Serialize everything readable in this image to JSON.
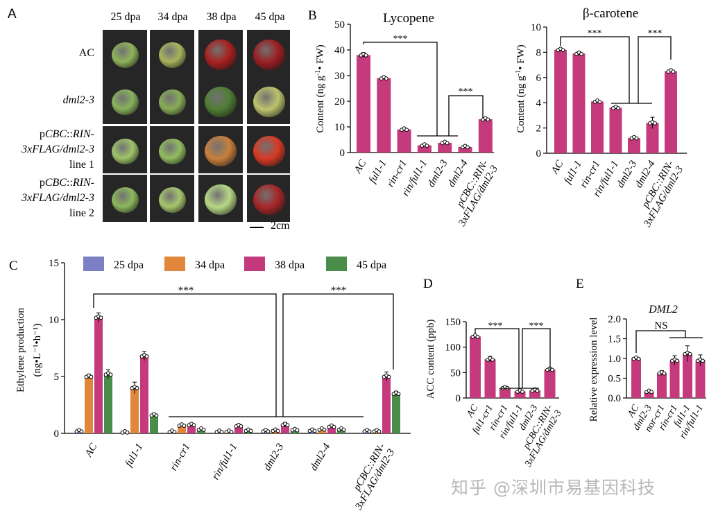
{
  "panelA": {
    "letter": "A",
    "columns": [
      "25 dpa",
      "34 dpa",
      "38 dpa",
      "45 dpa"
    ],
    "rows": [
      {
        "label_lines": [
          "AC"
        ],
        "colors": [
          "#8fb35a",
          "#a8b45c",
          "#a8201e",
          "#9b1e22"
        ]
      },
      {
        "label_lines": [
          "dml2-3"
        ],
        "colors": [
          "#8ab25c",
          "#87ad57",
          "#4f7e34",
          "#bcc46c"
        ]
      },
      {
        "label_lines": [
          "pCBC::RIN-",
          "3xFLAG/dml2-3",
          "line 1"
        ],
        "colors": [
          "#9fc469",
          "#92bd5f",
          "#c8803c",
          "#d83a24"
        ]
      },
      {
        "label_lines": [
          "pCBC::RIN-",
          "3xFLAG/dml2-3",
          "line 2"
        ],
        "colors": [
          "#8db85c",
          "#a5c66c",
          "#b7d885",
          "#a82628"
        ]
      }
    ],
    "scale_bar": "2cm"
  },
  "panelB": {
    "letter": "B",
    "lycopene": {
      "title": "Lycopene",
      "ylabel": "Content (ng g-1 FW)",
      "ylabel_parts": [
        "Content (ng g",
        "-1",
        "•",
        " FW)"
      ],
      "yticks": [
        "0",
        "10",
        "20",
        "30",
        "40",
        "50"
      ],
      "categories": [
        "AC",
        "ful1-1",
        "rin-cr1",
        "rin/ful1-1",
        "dml2-3",
        "dml2-4",
        "pCBC::RIN-3xFLAG/dml2-3"
      ],
      "sig1": "***",
      "sig2": "***"
    },
    "betacarotene": {
      "title": "β-carotene",
      "ylabel_parts": [
        "Content (ng g",
        "-1",
        "•",
        " FW)"
      ],
      "yticks": [
        "0",
        "2",
        "4",
        "6",
        "8",
        "10"
      ],
      "categories": [
        "AC",
        "ful1-1",
        "rin-cr1",
        "rin/ful1-1",
        "dml2-3",
        "dml2-4",
        "pCBC::RIN-3xFLAG/dml2-3"
      ],
      "sig1": "***",
      "sig2": "***"
    }
  },
  "panelC": {
    "letter": "C",
    "ylabel_line1": "Ethylene production",
    "ylabel_line2": "(ng•L⁻¹•h⁻¹)",
    "yticks": [
      "0",
      "5",
      "10",
      "15"
    ],
    "legend": [
      "25 dpa",
      "34 dpa",
      "38 dpa",
      "45 dpa"
    ],
    "categories": [
      "AC",
      "ful1-1",
      "rin-cr1",
      "rin/ful1-1",
      "dml2-3",
      "dml2-4",
      "pCBC::RIN-3xFLAG/dml2-3"
    ],
    "sig1": "***",
    "sig2": "***"
  },
  "panelD": {
    "letter": "D",
    "ylabel": "ACC content (ppb)",
    "yticks": [
      "0",
      "50",
      "100",
      "150"
    ],
    "categories": [
      "AC",
      "ful1-cr1",
      "rin-cr1",
      "rin/ful1-1",
      "dml2-3",
      "pCBC::RIN-3xFLAG/dml2-3"
    ],
    "sig1": "***",
    "sig2": "***"
  },
  "panelE": {
    "letter": "E",
    "title": "DML2",
    "ylabel": "Relative expression level",
    "yticks": [
      "0.0",
      "0.5",
      "1.0",
      "1.5",
      "2.0"
    ],
    "yticks_all": [
      "0.0",
      "0.5",
      "1.0",
      "1.5",
      "2.0"
    ],
    "categories": [
      "AC",
      "dml2-3",
      "nor-cr1",
      "rin-cr1",
      "ful1-1",
      "rin/ful1-1"
    ],
    "sig": "NS"
  },
  "watermark": "知乎 @深圳市易基因科技",
  "colors": {
    "bar_main": "#c53a7d",
    "c25": "#7b7fc4",
    "c34": "#e0873b",
    "c38": "#c53a7d",
    "c45": "#4a8c4a"
  },
  "chart_data": [
    {
      "type": "bar",
      "title": "Lycopene",
      "ylabel": "Content (ng g-1 FW)",
      "categories": [
        "AC",
        "ful1-1",
        "rin-cr1",
        "rin/ful1-1",
        "dml2-3",
        "dml2-4",
        "pCBC::RIN-3xFLAG/dml2-3"
      ],
      "values": [
        38,
        29,
        9,
        2.8,
        3.8,
        2.2,
        13
      ],
      "ylim": [
        0,
        50
      ]
    },
    {
      "type": "bar",
      "title": "β-carotene",
      "ylabel": "Content (ng g-1 FW)",
      "categories": [
        "AC",
        "ful1-1",
        "rin-cr1",
        "rin/ful1-1",
        "dml2-3",
        "dml2-4",
        "pCBC::RIN-3xFLAG/dml2-3"
      ],
      "values": [
        8.2,
        7.9,
        4.1,
        3.6,
        1.2,
        2.4,
        6.5
      ],
      "ylim": [
        0,
        10
      ]
    },
    {
      "type": "bar",
      "ylabel": "Ethylene production (ng•L-1•h-1)",
      "categories": [
        "AC",
        "ful1-1",
        "rin-cr1",
        "rin/ful1-1",
        "dml2-3",
        "dml2-4",
        "pCBC::RIN-3xFLAG/dml2-3"
      ],
      "series": [
        {
          "name": "25 dpa",
          "values": [
            0.2,
            0.1,
            0.15,
            0.15,
            0.2,
            0.25,
            0.2
          ]
        },
        {
          "name": "34 dpa",
          "values": [
            5.0,
            4.0,
            0.7,
            0.15,
            0.25,
            0.35,
            0.2
          ]
        },
        {
          "name": "38 dpa",
          "values": [
            10.2,
            6.8,
            0.75,
            0.65,
            0.75,
            0.6,
            5.0
          ]
        },
        {
          "name": "45 dpa",
          "values": [
            5.2,
            1.6,
            0.35,
            0.25,
            0.3,
            0.35,
            3.5
          ]
        }
      ],
      "ylim": [
        0,
        15
      ]
    },
    {
      "type": "bar",
      "ylabel": "ACC content (ppb)",
      "categories": [
        "AC",
        "ful1-cr1",
        "rin-cr1",
        "rin/ful1-1",
        "dml2-3",
        "pCBC::RIN-3xFLAG/dml2-3"
      ],
      "values": [
        121,
        76,
        20,
        13,
        15,
        56
      ],
      "ylim": [
        0,
        150
      ]
    },
    {
      "type": "bar",
      "title": "DML2",
      "ylabel": "Relative expression level",
      "categories": [
        "AC",
        "dml2-3",
        "nor-cr1",
        "rin-cr1",
        "ful1-1",
        "rin/ful1-1"
      ],
      "values": [
        1.0,
        0.16,
        0.63,
        0.95,
        1.12,
        0.95
      ],
      "ylim": [
        0,
        2.0
      ]
    }
  ]
}
